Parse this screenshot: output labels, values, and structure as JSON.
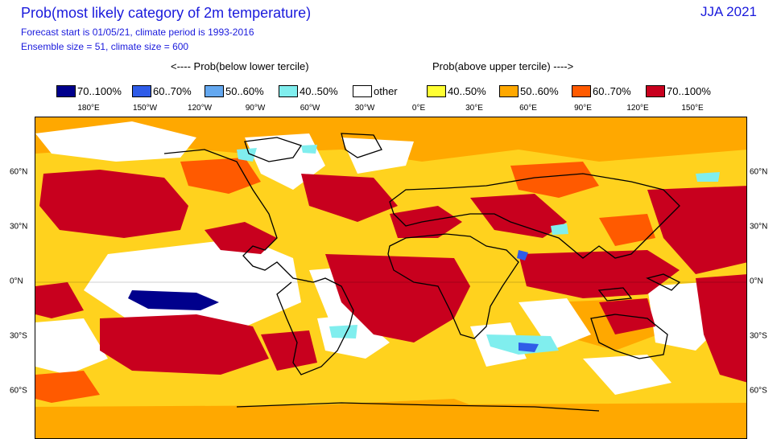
{
  "header": {
    "title": "Prob(most likely category of 2m temperature)",
    "season": "JJA 2021",
    "line1": "Forecast start is 01/05/21, climate period is 1993-2016",
    "line2": "Ensemble size = 51, climate size = 600"
  },
  "legend": {
    "below_title": "<---- Prob(below lower tercile)",
    "above_title": "Prob(above upper tercile) ---->",
    "items": [
      {
        "label": "70..100%",
        "color": "#00008c"
      },
      {
        "label": "60..70%",
        "color": "#2f5ce8"
      },
      {
        "label": "50..60%",
        "color": "#64a8f0"
      },
      {
        "label": "40..50%",
        "color": "#80eeee"
      },
      {
        "label": "other",
        "color": "#ffffff"
      },
      {
        "label": "40..50%",
        "color": "#ffff33"
      },
      {
        "label": "50..60%",
        "color": "#ffa800"
      },
      {
        "label": "60..70%",
        "color": "#ff5a00"
      },
      {
        "label": "70..100%",
        "color": "#c8001e"
      }
    ]
  },
  "axes": {
    "lon_labels": [
      "180°E",
      "150°W",
      "120°W",
      "90°W",
      "60°W",
      "30°W",
      "0°E",
      "30°E",
      "60°E",
      "90°E",
      "120°E",
      "150°E"
    ],
    "lat_labels": [
      "60°N",
      "30°N",
      "0°N",
      "30°S",
      "60°S"
    ]
  },
  "map": {
    "projection": "equirectangular",
    "regions": [
      {
        "name": "north-pacific-warm",
        "category": "70..100%"
      },
      {
        "name": "tropical-atlantic-warm",
        "category": "70..100%"
      },
      {
        "name": "indian-ocean-warm",
        "category": "70..100%"
      },
      {
        "name": "equatorial-pacific-cold",
        "category": "70..100%"
      }
    ]
  }
}
